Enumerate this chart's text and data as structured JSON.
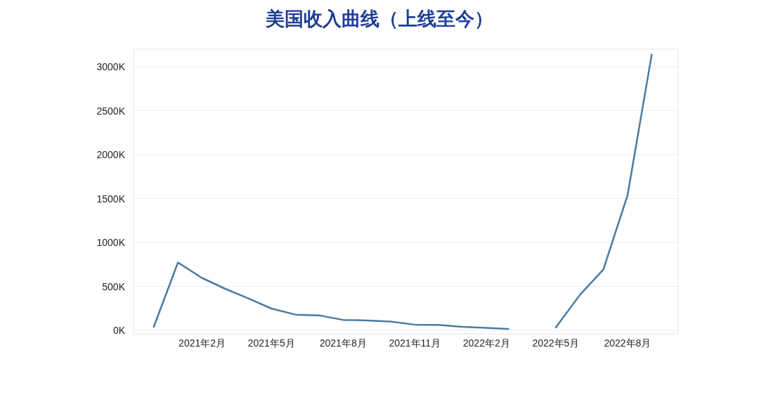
{
  "chart_data": {
    "type": "line",
    "title": "美国收入曲线（上线至今）",
    "x": [
      "2020-12",
      "2021-01",
      "2021-02",
      "2021-03",
      "2021-04",
      "2021-05",
      "2021-06",
      "2021-07",
      "2021-08",
      "2021-09",
      "2021-10",
      "2021-11",
      "2021-12",
      "2022-01",
      "2022-02",
      "2022-03",
      "2022-04",
      "2022-05",
      "2022-06",
      "2022-07",
      "2022-08",
      "2022-09"
    ],
    "values": [
      40,
      772,
      596,
      480,
      365,
      248,
      179,
      171,
      119,
      113,
      100,
      65,
      62,
      40,
      28,
      16,
      null,
      34,
      405,
      693,
      1537,
      3137
    ],
    "color": "#4a7ba3",
    "xlim": [
      "2020-11-05",
      "2022-10-05"
    ],
    "xticks": [
      {
        "value": "2021-02",
        "label": "2021年2月"
      },
      {
        "value": "2021-05",
        "label": "2021年5月"
      },
      {
        "value": "2021-08",
        "label": "2021年8月"
      },
      {
        "value": "2021-11",
        "label": "2021年11月"
      },
      {
        "value": "2022-02",
        "label": "2022年2月"
      },
      {
        "value": "2022-05",
        "label": "2022年5月"
      },
      {
        "value": "2022-08",
        "label": "2022年8月"
      }
    ],
    "ylim": [
      -40,
      3200
    ],
    "yticks": [
      {
        "value": 0,
        "label": "0K"
      },
      {
        "value": 500,
        "label": "500K"
      },
      {
        "value": 1000,
        "label": "1000K"
      },
      {
        "value": 1500,
        "label": "1500K"
      },
      {
        "value": 2000,
        "label": "2000K"
      },
      {
        "value": 2500,
        "label": "2500K"
      },
      {
        "value": 3000,
        "label": "3000K"
      }
    ],
    "grid": "y"
  }
}
